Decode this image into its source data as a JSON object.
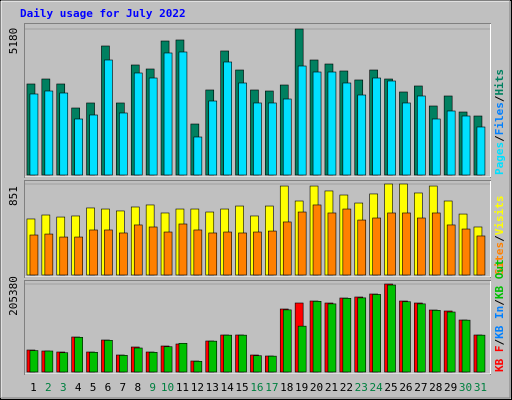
{
  "chart_data": {
    "type": "bar",
    "title": "Daily usage for July 2022",
    "title_color": "#0000ff",
    "categories": [
      "1",
      "2",
      "3",
      "4",
      "5",
      "6",
      "7",
      "8",
      "9",
      "10",
      "11",
      "12",
      "13",
      "14",
      "15",
      "16",
      "17",
      "18",
      "19",
      "20",
      "21",
      "22",
      "23",
      "24",
      "25",
      "26",
      "27",
      "28",
      "29",
      "30",
      "31"
    ],
    "category_colors": [
      "#000000",
      "#008040",
      "#008040",
      "#000000",
      "#000000",
      "#000000",
      "#000000",
      "#000000",
      "#008040",
      "#008040",
      "#000000",
      "#000000",
      "#000000",
      "#000000",
      "#000000",
      "#008040",
      "#008040",
      "#000000",
      "#000000",
      "#000000",
      "#000000",
      "#000000",
      "#008040",
      "#008040",
      "#000000",
      "#000000",
      "#000000",
      "#000000",
      "#000000",
      "#008040",
      "#008040"
    ],
    "legend_separator": "/",
    "panels": [
      {
        "ylim": [
          0,
          5180
        ],
        "yticks": [
          5180
        ],
        "draw_order": "reverse",
        "series": [
          {
            "name": "Pages",
            "color": "#00e0ff",
            "values": [
              2874,
              2980,
              2909,
              1987,
              2129,
              4080,
              2200,
              3619,
              3441,
              4329,
              4364,
              1348,
              2625,
              4009,
              3264,
              2555,
              2555,
              2696,
              3867,
              3654,
              3654,
              3264,
              2838,
              3441,
              3335,
              2555,
              2803,
              1987,
              2271,
              2093,
              1703
            ]
          },
          {
            "name": "Files",
            "color": "#0080ff",
            "values": [
              null,
              null,
              null,
              null,
              null,
              null,
              null,
              null,
              null,
              null,
              null,
              null,
              null,
              null,
              null,
              null,
              null,
              null,
              null,
              null,
              null,
              null,
              null,
              null,
              null,
              null,
              null,
              null,
              null,
              null,
              null
            ]
          },
          {
            "name": "Hits",
            "color": "#008060",
            "values": [
              3229,
              3406,
              3229,
              2377,
              2555,
              4577,
              2555,
              3903,
              3761,
              4754,
              4790,
              1809,
              3016,
              4400,
              3725,
              3016,
              2980,
              3193,
              5180,
              4080,
              3938,
              3690,
              3371,
              3725,
              3406,
              2945,
              3158,
              2448,
              2803,
              2235,
              2093
            ]
          }
        ]
      },
      {
        "ylim": [
          0,
          851
        ],
        "yticks": [
          851
        ],
        "draw_order": "reverse",
        "series": [
          {
            "name": "Sites",
            "color": "#ff8000",
            "values": [
              374,
              383,
              355,
              355,
              421,
              421,
              393,
              468,
              449,
              402,
              477,
              421,
              393,
              402,
              393,
              402,
              411,
              496,
              589,
              655,
              580,
              617,
              514,
              533,
              580,
              580,
              533,
              580,
              468,
              430,
              365
            ]
          },
          {
            "name": "Visits",
            "color": "#ffff00",
            "values": [
              524,
              561,
              542,
              552,
              627,
              617,
              599,
              636,
              655,
              580,
              617,
              617,
              589,
              617,
              645,
              552,
              645,
              832,
              692,
              832,
              786,
              748,
              673,
              758,
              851,
              851,
              767,
              832,
              692,
              570,
              449
            ]
          }
        ]
      },
      {
        "ylim": [
          0,
          205380
        ],
        "yticks": [
          205380
        ],
        "draw_order": "forward",
        "series": [
          {
            "name": "KB F",
            "color": "#ff0000",
            "values": [
              51345,
              49011,
              46677,
              81685,
              46677,
              74684,
              39675,
              58347,
              46677,
              60680,
              65348,
              25673,
              72350,
              86353,
              86353,
              39675,
              37342,
              147033,
              161035,
              165704,
              161035,
              172704,
              175038,
              182042,
              205380,
              165704,
              161035,
              144699,
              142365,
              121361,
              86353
            ]
          },
          {
            "name": "KB In",
            "color": "#0080ff",
            "values": [
              null,
              null,
              null,
              null,
              null,
              null,
              null,
              null,
              null,
              null,
              null,
              null,
              null,
              null,
              null,
              null,
              null,
              null,
              null,
              null,
              null,
              null,
              null,
              null,
              null,
              null,
              null,
              null,
              null,
              null,
              null
            ]
          },
          {
            "name": "KB Out",
            "color": "#00c000",
            "values": [
              50000,
              49000,
              45000,
              81000,
              46000,
              74000,
              39000,
              56000,
              46000,
              59000,
              67000,
              25000,
              72000,
              86000,
              86000,
              38000,
              37000,
              145000,
              107000,
              165000,
              159000,
              172000,
              173000,
              181000,
              203000,
              164000,
              159000,
              144000,
              140000,
              121000,
              86000
            ]
          }
        ]
      }
    ]
  }
}
